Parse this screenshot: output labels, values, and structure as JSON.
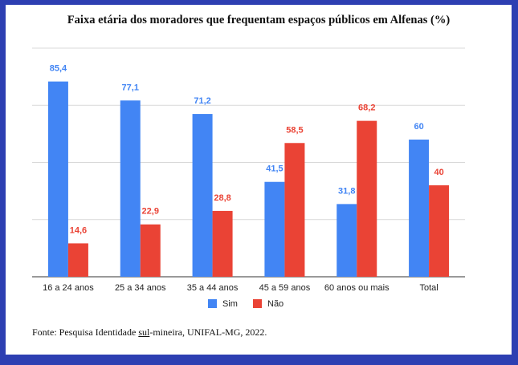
{
  "chart_data": {
    "type": "bar",
    "title": "Faixa etária dos moradores que frequentam espaços públicos em Alfenas (%)",
    "categories": [
      "16 a 24 anos",
      "25 a 34 anos",
      "35 a 44 anos",
      "45 a 59 anos",
      "60 anos ou mais",
      "Total"
    ],
    "series": [
      {
        "name": "Sim",
        "color": "#4285f4",
        "values": [
          85.4,
          77.1,
          71.2,
          41.5,
          31.8,
          60
        ],
        "labels": [
          "85,4",
          "77,1",
          "71,2",
          "41,5",
          "31,8",
          "60"
        ]
      },
      {
        "name": "Não",
        "color": "#ea4335",
        "values": [
          14.6,
          22.9,
          28.8,
          58.5,
          68.2,
          40
        ],
        "labels": [
          "14,6",
          "22,9",
          "28,8",
          "58,5",
          "68,2",
          "40"
        ]
      }
    ],
    "ylim": [
      0,
      100
    ],
    "grid": true,
    "legend": "bottom",
    "xlabel": "",
    "ylabel": ""
  },
  "source": {
    "prefix": "Fonte: Pesquisa Identidade ",
    "underlined": "sul",
    "suffix": "-mineira, UNIFAL-MG, 2022."
  }
}
